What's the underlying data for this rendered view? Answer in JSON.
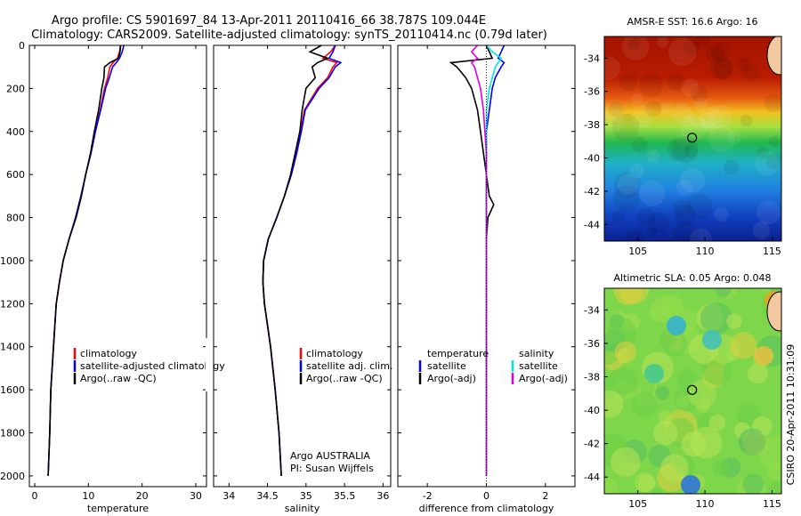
{
  "header": {
    "line1": "Argo profile: CS 5901697_84 13-Apr-2011 20110416_66 38.787S 109.044E",
    "line2": "Climatology: CARS2009. Satellite-adjusted climatology: synTS_20110414.nc (0.79d later)"
  },
  "side_text": "CSIRO 20-Apr-2011 10:31:09",
  "credit": {
    "line1": "Argo AUSTRALIA",
    "line2": "PI: Susan Wijffels"
  },
  "colors": {
    "climatology": "#ff0000",
    "satellite": "#0000ff",
    "argo": "#000000",
    "sat_diff": "#00e5e5",
    "argo_diff": "#e000e0"
  },
  "chart_data": [
    {
      "type": "line",
      "xlabel": "temperature",
      "ylabel": "",
      "xlim": [
        -1,
        32
      ],
      "xticks": [
        0,
        10,
        20,
        30
      ],
      "ylim": [
        2050,
        0
      ],
      "yticks": [
        0,
        200,
        400,
        600,
        800,
        1000,
        1200,
        1400,
        1600,
        1800,
        2000
      ],
      "legend": [
        "climatology",
        "satellite-adjusted climatology",
        "Argo(..raw -QC)"
      ],
      "depth": [
        0,
        30,
        60,
        80,
        100,
        150,
        200,
        300,
        400,
        500,
        600,
        700,
        800,
        900,
        1000,
        1100,
        1200,
        1400,
        1600,
        1800,
        2000
      ],
      "series": [
        {
          "name": "climatology",
          "values": [
            16.0,
            15.8,
            15.4,
            14.6,
            14.0,
            13.6,
            13.0,
            12.2,
            11.3,
            10.5,
            9.5,
            8.6,
            7.6,
            6.4,
            5.3,
            4.6,
            4.0,
            3.5,
            3.0,
            2.8,
            2.5
          ]
        },
        {
          "name": "satellite-adjusted climatology",
          "values": [
            16.6,
            16.3,
            15.8,
            15.2,
            14.5,
            13.9,
            13.2,
            12.3,
            11.3,
            10.5,
            9.5,
            8.6,
            7.6,
            6.4,
            5.3,
            4.6,
            4.0,
            3.5,
            3.0,
            2.8,
            2.5
          ]
        },
        {
          "name": "Argo(..raw -QC)",
          "values": [
            16.0,
            15.9,
            15.6,
            14.0,
            13.0,
            12.9,
            12.5,
            11.9,
            11.1,
            10.4,
            9.5,
            8.7,
            7.7,
            6.4,
            5.3,
            4.6,
            4.0,
            3.5,
            3.0,
            2.8,
            2.5
          ]
        }
      ]
    },
    {
      "type": "line",
      "xlabel": "salinity",
      "xlim": [
        33.8,
        36.1
      ],
      "xticks": [
        34,
        34.5,
        35,
        35.5,
        36
      ],
      "ylim": [
        2050,
        0
      ],
      "yticks": [
        0,
        200,
        400,
        600,
        800,
        1000,
        1200,
        1400,
        1600,
        1800,
        2000
      ],
      "legend": [
        "climatology",
        "satellite adj. clim.",
        "Argo(..raw -QC)"
      ],
      "depth": [
        0,
        30,
        60,
        80,
        100,
        150,
        200,
        300,
        400,
        500,
        600,
        700,
        800,
        900,
        1000,
        1100,
        1200,
        1400,
        1600,
        1800,
        2000
      ],
      "series": [
        {
          "name": "climatology",
          "values": [
            35.38,
            35.32,
            35.22,
            35.4,
            35.35,
            35.28,
            35.15,
            34.98,
            34.93,
            34.88,
            34.81,
            34.72,
            34.62,
            34.51,
            34.45,
            34.44,
            34.46,
            34.54,
            34.6,
            34.65,
            34.68
          ]
        },
        {
          "name": "satellite adj. clim.",
          "values": [
            35.38,
            35.35,
            35.3,
            35.45,
            35.38,
            35.3,
            35.17,
            34.99,
            34.94,
            34.88,
            34.81,
            34.72,
            34.62,
            34.51,
            34.45,
            34.44,
            34.46,
            34.54,
            34.6,
            34.65,
            34.68
          ]
        },
        {
          "name": "Argo(..raw -QC)",
          "values": [
            35.2,
            35.05,
            35.28,
            35.15,
            35.08,
            35.12,
            35.0,
            34.95,
            34.92,
            34.86,
            34.8,
            34.72,
            34.62,
            34.51,
            34.45,
            34.44,
            34.46,
            34.54,
            34.6,
            34.65,
            34.68
          ]
        }
      ]
    },
    {
      "type": "line",
      "xlabel": "difference from climatology",
      "xlim": [
        -3,
        3
      ],
      "xticks": [
        -2,
        0,
        2
      ],
      "ylim": [
        2050,
        0
      ],
      "yticks": [
        0,
        200,
        400,
        600,
        800,
        1000,
        1200,
        1400,
        1600,
        1800,
        2000
      ],
      "legend_left_title": "temperature",
      "legend_right_title": "salinity",
      "legend": [
        "satellite",
        "Argo(-adj)",
        "satellite",
        "Argo(-adj)"
      ],
      "depth": [
        0,
        30,
        60,
        80,
        100,
        150,
        200,
        300,
        400,
        500,
        600,
        700,
        740,
        800,
        900,
        1000,
        1200,
        1400,
        1600,
        1800,
        2000
      ],
      "series": [
        {
          "name": "temperature satellite",
          "values": [
            0.6,
            0.5,
            0.4,
            0.6,
            0.5,
            0.3,
            0.2,
            0.1,
            0.0,
            0.0,
            0.0,
            0.0,
            0.0,
            0.0,
            0.0,
            0.0,
            0.0,
            0.0,
            0.0,
            0.0,
            0.0
          ]
        },
        {
          "name": "temperature Argo(-adj)",
          "values": [
            0.0,
            0.1,
            0.2,
            -1.2,
            -1.0,
            -0.7,
            -0.5,
            -0.3,
            -0.2,
            -0.1,
            0.0,
            0.1,
            0.25,
            0.05,
            0.0,
            0.0,
            0.0,
            0.0,
            0.0,
            0.0,
            0.0
          ]
        },
        {
          "name": "salinity satellite",
          "values": [
            0.0,
            0.2,
            0.5,
            0.4,
            0.3,
            0.2,
            0.1,
            0.0,
            0.0,
            0.0,
            0.0,
            0.0,
            0.0,
            0.0,
            0.0,
            0.0,
            0.0,
            0.0,
            0.0,
            0.0,
            0.0
          ]
        },
        {
          "name": "salinity Argo(-adj)",
          "values": [
            -0.3,
            -0.5,
            -0.3,
            -0.5,
            -0.4,
            -0.3,
            -0.2,
            -0.1,
            -0.05,
            0.0,
            0.0,
            0.0,
            0.0,
            0.0,
            0.0,
            0.0,
            0.0,
            0.0,
            0.0,
            0.0,
            0.0
          ]
        }
      ]
    },
    {
      "type": "heatmap",
      "title": "AMSR-E SST: 16.6 Argo: 16",
      "xlim": [
        102.5,
        115.7
      ],
      "ylim": [
        -45,
        -32.7
      ],
      "xticks": [
        105,
        110,
        115
      ],
      "yticks": [
        -34,
        -36,
        -38,
        -40,
        -42,
        -44
      ],
      "argo_position": [
        109.044,
        -38.787
      ]
    },
    {
      "type": "heatmap",
      "title": "Altimetric SLA: 0.05 Argo: 0.048",
      "xlim": [
        102.5,
        115.7
      ],
      "ylim": [
        -45,
        -32.7
      ],
      "xticks": [
        105,
        110,
        115
      ],
      "yticks": [
        -34,
        -36,
        -38,
        -40,
        -42,
        -44
      ],
      "argo_position": [
        109.044,
        -38.787
      ]
    }
  ]
}
